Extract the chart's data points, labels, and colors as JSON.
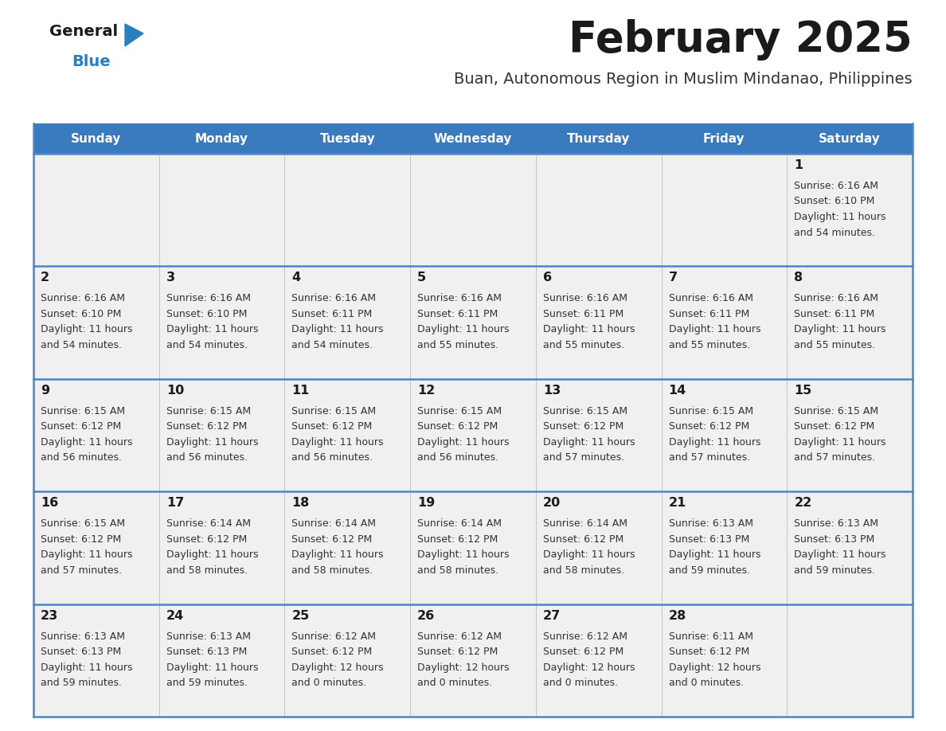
{
  "title": "February 2025",
  "subtitle": "Buan, Autonomous Region in Muslim Mindanao, Philippines",
  "days_of_week": [
    "Sunday",
    "Monday",
    "Tuesday",
    "Wednesday",
    "Thursday",
    "Friday",
    "Saturday"
  ],
  "header_bg": "#3a7abf",
  "header_text": "#ffffff",
  "cell_bg": "#f0f0f0",
  "cell_bg_white": "#ffffff",
  "divider_color": "#4a86c8",
  "title_color": "#1a1a1a",
  "subtitle_color": "#333333",
  "day_number_color": "#1a1a1a",
  "info_color": "#333333",
  "logo_general_color": "#1a1a1a",
  "logo_blue_color": "#2a7fc1",
  "calendar_data": [
    [
      null,
      null,
      null,
      null,
      null,
      null,
      {
        "day": 1,
        "sunrise": "6:16 AM",
        "sunset": "6:10 PM",
        "daylight_l1": "Daylight: 11 hours",
        "daylight_l2": "and 54 minutes."
      }
    ],
    [
      {
        "day": 2,
        "sunrise": "6:16 AM",
        "sunset": "6:10 PM",
        "daylight_l1": "Daylight: 11 hours",
        "daylight_l2": "and 54 minutes."
      },
      {
        "day": 3,
        "sunrise": "6:16 AM",
        "sunset": "6:10 PM",
        "daylight_l1": "Daylight: 11 hours",
        "daylight_l2": "and 54 minutes."
      },
      {
        "day": 4,
        "sunrise": "6:16 AM",
        "sunset": "6:11 PM",
        "daylight_l1": "Daylight: 11 hours",
        "daylight_l2": "and 54 minutes."
      },
      {
        "day": 5,
        "sunrise": "6:16 AM",
        "sunset": "6:11 PM",
        "daylight_l1": "Daylight: 11 hours",
        "daylight_l2": "and 55 minutes."
      },
      {
        "day": 6,
        "sunrise": "6:16 AM",
        "sunset": "6:11 PM",
        "daylight_l1": "Daylight: 11 hours",
        "daylight_l2": "and 55 minutes."
      },
      {
        "day": 7,
        "sunrise": "6:16 AM",
        "sunset": "6:11 PM",
        "daylight_l1": "Daylight: 11 hours",
        "daylight_l2": "and 55 minutes."
      },
      {
        "day": 8,
        "sunrise": "6:16 AM",
        "sunset": "6:11 PM",
        "daylight_l1": "Daylight: 11 hours",
        "daylight_l2": "and 55 minutes."
      }
    ],
    [
      {
        "day": 9,
        "sunrise": "6:15 AM",
        "sunset": "6:12 PM",
        "daylight_l1": "Daylight: 11 hours",
        "daylight_l2": "and 56 minutes."
      },
      {
        "day": 10,
        "sunrise": "6:15 AM",
        "sunset": "6:12 PM",
        "daylight_l1": "Daylight: 11 hours",
        "daylight_l2": "and 56 minutes."
      },
      {
        "day": 11,
        "sunrise": "6:15 AM",
        "sunset": "6:12 PM",
        "daylight_l1": "Daylight: 11 hours",
        "daylight_l2": "and 56 minutes."
      },
      {
        "day": 12,
        "sunrise": "6:15 AM",
        "sunset": "6:12 PM",
        "daylight_l1": "Daylight: 11 hours",
        "daylight_l2": "and 56 minutes."
      },
      {
        "day": 13,
        "sunrise": "6:15 AM",
        "sunset": "6:12 PM",
        "daylight_l1": "Daylight: 11 hours",
        "daylight_l2": "and 57 minutes."
      },
      {
        "day": 14,
        "sunrise": "6:15 AM",
        "sunset": "6:12 PM",
        "daylight_l1": "Daylight: 11 hours",
        "daylight_l2": "and 57 minutes."
      },
      {
        "day": 15,
        "sunrise": "6:15 AM",
        "sunset": "6:12 PM",
        "daylight_l1": "Daylight: 11 hours",
        "daylight_l2": "and 57 minutes."
      }
    ],
    [
      {
        "day": 16,
        "sunrise": "6:15 AM",
        "sunset": "6:12 PM",
        "daylight_l1": "Daylight: 11 hours",
        "daylight_l2": "and 57 minutes."
      },
      {
        "day": 17,
        "sunrise": "6:14 AM",
        "sunset": "6:12 PM",
        "daylight_l1": "Daylight: 11 hours",
        "daylight_l2": "and 58 minutes."
      },
      {
        "day": 18,
        "sunrise": "6:14 AM",
        "sunset": "6:12 PM",
        "daylight_l1": "Daylight: 11 hours",
        "daylight_l2": "and 58 minutes."
      },
      {
        "day": 19,
        "sunrise": "6:14 AM",
        "sunset": "6:12 PM",
        "daylight_l1": "Daylight: 11 hours",
        "daylight_l2": "and 58 minutes."
      },
      {
        "day": 20,
        "sunrise": "6:14 AM",
        "sunset": "6:12 PM",
        "daylight_l1": "Daylight: 11 hours",
        "daylight_l2": "and 58 minutes."
      },
      {
        "day": 21,
        "sunrise": "6:13 AM",
        "sunset": "6:13 PM",
        "daylight_l1": "Daylight: 11 hours",
        "daylight_l2": "and 59 minutes."
      },
      {
        "day": 22,
        "sunrise": "6:13 AM",
        "sunset": "6:13 PM",
        "daylight_l1": "Daylight: 11 hours",
        "daylight_l2": "and 59 minutes."
      }
    ],
    [
      {
        "day": 23,
        "sunrise": "6:13 AM",
        "sunset": "6:13 PM",
        "daylight_l1": "Daylight: 11 hours",
        "daylight_l2": "and 59 minutes."
      },
      {
        "day": 24,
        "sunrise": "6:13 AM",
        "sunset": "6:13 PM",
        "daylight_l1": "Daylight: 11 hours",
        "daylight_l2": "and 59 minutes."
      },
      {
        "day": 25,
        "sunrise": "6:12 AM",
        "sunset": "6:12 PM",
        "daylight_l1": "Daylight: 12 hours",
        "daylight_l2": "and 0 minutes."
      },
      {
        "day": 26,
        "sunrise": "6:12 AM",
        "sunset": "6:12 PM",
        "daylight_l1": "Daylight: 12 hours",
        "daylight_l2": "and 0 minutes."
      },
      {
        "day": 27,
        "sunrise": "6:12 AM",
        "sunset": "6:12 PM",
        "daylight_l1": "Daylight: 12 hours",
        "daylight_l2": "and 0 minutes."
      },
      {
        "day": 28,
        "sunrise": "6:11 AM",
        "sunset": "6:12 PM",
        "daylight_l1": "Daylight: 12 hours",
        "daylight_l2": "and 0 minutes."
      },
      null
    ]
  ],
  "num_rows": 5,
  "num_cols": 7
}
